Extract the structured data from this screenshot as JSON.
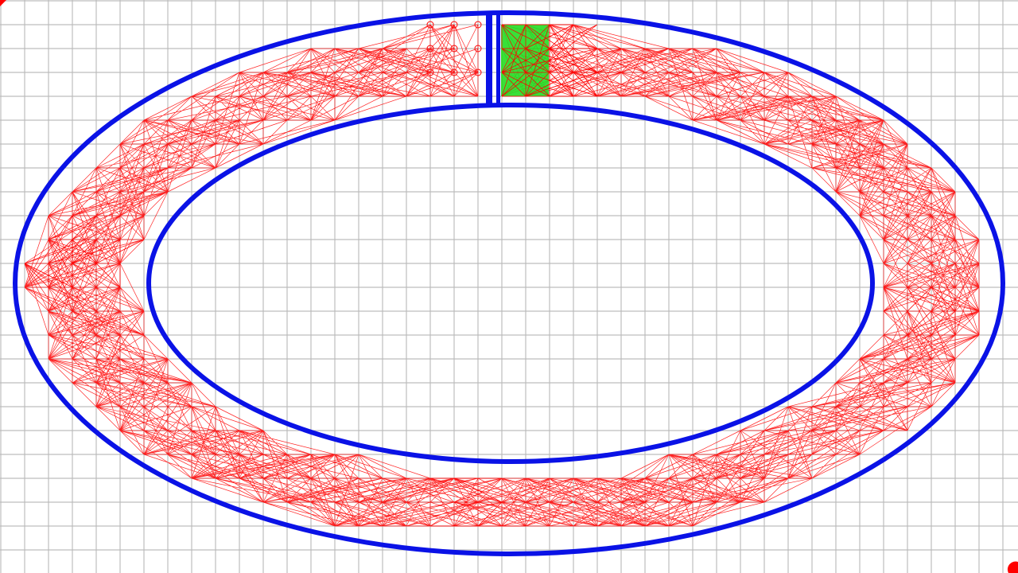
{
  "colors": {
    "background": "#ffffff",
    "grid": "#bdbdbd",
    "track_border": "#0a12e6",
    "mesh": "#ff0000",
    "start_zone": "#22dd22"
  },
  "grid": {
    "visible": true
  },
  "track": {
    "shape": "elliptical-ring",
    "has_start_divider": true
  },
  "mesh": {
    "style": "triangulated-waypoint-graph"
  },
  "start_zone": {
    "present": true
  },
  "corner_markers": [
    "top-left",
    "bottom-right"
  ]
}
